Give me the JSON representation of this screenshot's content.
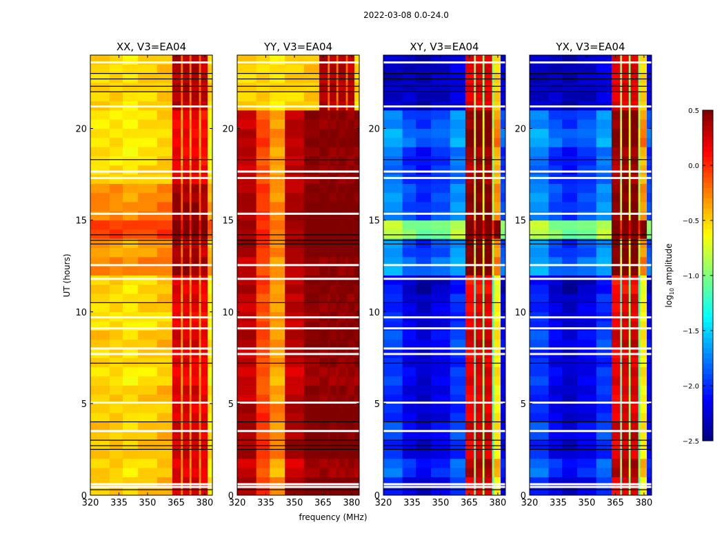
{
  "chart_data": {
    "type": "heatmap",
    "title": "2022-03-08 0.0-24.0",
    "xlabel": "frequency (MHz)",
    "ylabel": "UT (hours)",
    "xlim": [
      320,
      384
    ],
    "ylim": [
      0,
      24
    ],
    "xticks": [
      "320",
      "335",
      "350",
      "365",
      "380"
    ],
    "xtick_values": [
      320,
      335,
      350,
      365,
      380
    ],
    "yticks": [
      "0",
      "5",
      "10",
      "15",
      "20"
    ],
    "ytick_values": [
      0,
      5,
      10,
      15,
      20
    ],
    "colorbar": {
      "label_main": "log",
      "label_sub": "10",
      "label_rest": " amplitude",
      "range": [
        -2.5,
        0.5
      ],
      "ticks": [
        "0.5",
        "0.0",
        "−0.5",
        "−1.0",
        "−1.5",
        "−2.0",
        "−2.5"
      ],
      "tick_values": [
        0.5,
        0.0,
        -0.5,
        -1.0,
        -1.5,
        -2.0,
        -2.5
      ],
      "colormap": "jet"
    },
    "frequency_band_edges": [
      320,
      330,
      337,
      345,
      355,
      363,
      367.5,
      368.5,
      372,
      373,
      377,
      378,
      381.5,
      384
    ],
    "flagged_hours_white": [
      0.45,
      0.6,
      3.5,
      5.05,
      7.7,
      8.0,
      9.1,
      9.7,
      11.8,
      12.55,
      15.35,
      17.3,
      17.65,
      21.2,
      23.6
    ],
    "dark_lines_hours": [
      0.3,
      2.5,
      2.7,
      3.0,
      4.0,
      7.2,
      10.5,
      13.7,
      13.9,
      14.2,
      18.3,
      22.0,
      22.3,
      22.7,
      23.0
    ],
    "panels": [
      {
        "title": "XX, V3=EA04",
        "band_log_amplitude": [
          -0.45,
          -0.45,
          -0.5,
          -0.45,
          -0.4,
          0.25,
          -0.3,
          0.25,
          -0.3,
          0.25,
          -0.3,
          0.2,
          -0.55
        ],
        "hour_offsets": [
          0,
          -0.05,
          0,
          0,
          -0.05,
          0,
          -0.1,
          -0.05,
          0,
          -0.1,
          -0.05,
          -0.05,
          0.2,
          0.1,
          0.4,
          0.2,
          0.15,
          -0.05,
          -0.1,
          -0.1,
          -0.1,
          -0.15,
          0,
          0
        ],
        "top_hours_from": 21.2,
        "top_band_log_amplitude": [
          -0.5,
          -0.5,
          -0.55,
          -0.5,
          -0.45,
          0.35,
          -0.2,
          0.35,
          -0.2,
          0.35,
          -0.2,
          0.3,
          -0.5
        ]
      },
      {
        "title": "YY, V3=EA04",
        "band_log_amplitude": [
          0.3,
          -0.1,
          -0.35,
          0.3,
          0.45,
          0.45,
          0.45,
          0.45,
          0.45,
          0.45,
          0.45,
          0.45,
          0.45
        ],
        "hour_offsets": [
          0.1,
          -0.05,
          0.1,
          0.05,
          0.1,
          0,
          -0.05,
          0,
          0.05,
          0,
          0,
          0.05,
          0,
          0.1,
          0.1,
          0.1,
          0.05,
          0,
          0,
          0.05,
          0,
          0,
          0,
          0
        ],
        "top_hours_from": 21.2,
        "top_band_log_amplitude": [
          -0.5,
          -0.5,
          -0.55,
          -0.5,
          -0.45,
          0.35,
          -0.2,
          0.35,
          -0.2,
          0.35,
          -0.2,
          0.3,
          -0.5
        ]
      },
      {
        "title": "XY, V3=EA04",
        "band_log_amplitude": [
          -2.0,
          -2.2,
          -2.3,
          -2.2,
          -2.0,
          0.15,
          -1.2,
          0.2,
          -1.0,
          0.2,
          -1.2,
          -0.6,
          -2.2
        ],
        "hour_offsets": [
          0,
          0.2,
          0,
          0.1,
          0,
          0,
          0.05,
          0,
          0.1,
          0,
          0,
          -0.1,
          0.4,
          0.3,
          1.2,
          0.3,
          0.3,
          0.2,
          0.2,
          0.4,
          0.3,
          0,
          0,
          0
        ],
        "top_hours_from": 21.2,
        "top_band_log_amplitude": [
          -2.3,
          -2.3,
          -2.35,
          -2.3,
          -2.2,
          0.2,
          -1.0,
          0.2,
          -1.0,
          0.2,
          -1.0,
          -0.5,
          -2.2
        ]
      },
      {
        "title": "YX, V3=EA04",
        "band_log_amplitude": [
          -2.0,
          -2.2,
          -2.3,
          -2.2,
          -2.0,
          0.15,
          -1.2,
          0.2,
          -1.0,
          0.2,
          -1.2,
          -0.6,
          -2.2
        ],
        "hour_offsets": [
          0,
          0.2,
          0,
          0.1,
          0,
          0,
          0.05,
          0,
          0.1,
          0,
          0,
          -0.1,
          0.4,
          0.3,
          1.2,
          0.3,
          0.3,
          0.2,
          0.2,
          0.4,
          0.3,
          0,
          0,
          0
        ],
        "top_hours_from": 21.2,
        "top_band_log_amplitude": [
          -2.3,
          -2.3,
          -2.35,
          -2.3,
          -2.2,
          0.2,
          -1.0,
          0.2,
          -1.0,
          0.2,
          -1.0,
          -0.5,
          -2.2
        ]
      }
    ]
  }
}
